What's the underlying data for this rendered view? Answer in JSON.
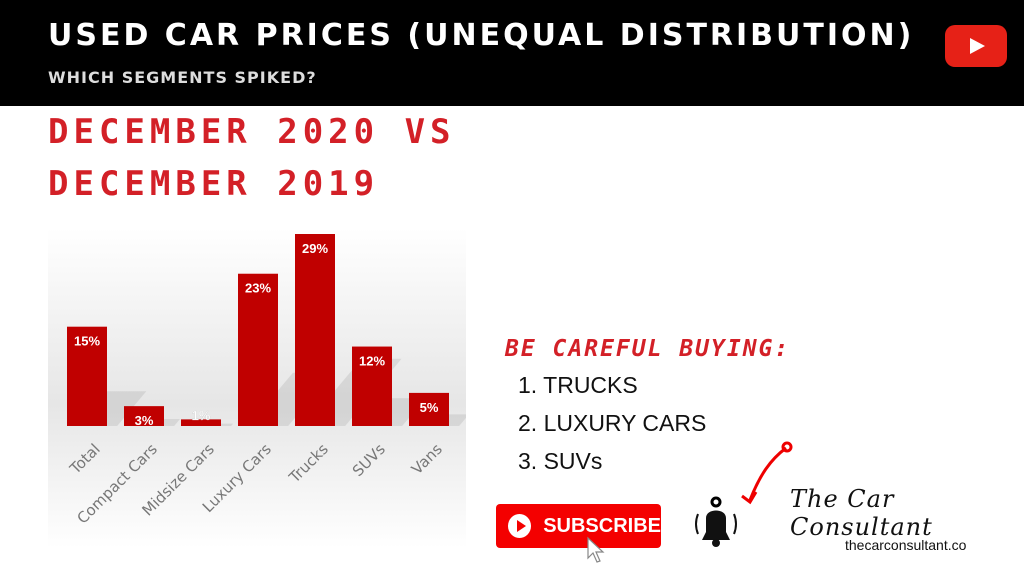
{
  "header": {
    "title": "USED CAR PRICES (UNEQUAL DISTRIBUTION)",
    "subtitle": "WHICH SEGMENTS SPIKED?",
    "youtube_icon": "youtube-logo-icon"
  },
  "heading": {
    "line1": "DECEMBER 2020 VS",
    "line2": "DECEMBER 2019"
  },
  "chart_data": {
    "type": "bar",
    "categories": [
      "Total",
      "Compact Cars",
      "Midsize Cars",
      "Luxury Cars",
      "Trucks",
      "SUVs",
      "Vans"
    ],
    "values": [
      15,
      3,
      1,
      23,
      29,
      12,
      5
    ],
    "labels": [
      "15%",
      "3%",
      "1%",
      "23%",
      "29%",
      "12%",
      "5%"
    ],
    "unit": "%",
    "ylim": [
      0,
      30
    ],
    "color": "#c00000",
    "grid": false
  },
  "careful": {
    "title": "BE CAREFUL BUYING:",
    "items": [
      "1. TRUCKS",
      "2. LUXURY CARS",
      "3. SUVs"
    ]
  },
  "subscribe": {
    "label": "SUBSCRIBE"
  },
  "brand": {
    "logo": "The Car Consultant",
    "site": "thecarconsultant.co"
  }
}
